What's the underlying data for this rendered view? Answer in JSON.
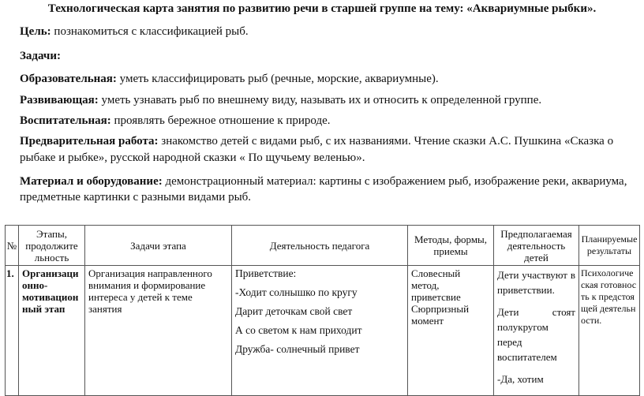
{
  "title": "Технологическая карта занятия по развитию речи в старшей группе на тему: «Аквариумные рыбки».",
  "goal": {
    "label": "Цель:",
    "text": " познакомиться с классификацией рыб."
  },
  "tasks_label": "Задачи:",
  "educational": {
    "label": "Образовательная:",
    "text": " уметь классифицировать рыб (речные, морские, аквариумные)."
  },
  "developing": {
    "label": "Развивающая:",
    "text": " уметь узнавать рыб по внешнему виду, называть их и относить к определенной группе."
  },
  "upbringing": {
    "label": "Воспитательная:",
    "text": " проявлять бережное отношение к природе."
  },
  "preliminary": {
    "label": "Предварительная работа:",
    "line1": "  знакомство детей с видами  рыб, с их названиями. Чтение сказки А.С. Пушкина  «Сказка о",
    "line2": "рыбаке и рыбке», русской народной сказки « По щучьему веленью»."
  },
  "materials": {
    "label": "Материал и оборудование:",
    "line1": " демонстрационный материал: картины с изображением рыб, изображение реки, аквариума,",
    "line2": "предметные картинки с разными видами рыб."
  },
  "table": {
    "headers": [
      "№",
      "Этапы, продолжите льность",
      "Задачи этапа",
      "Деятельность педагога",
      "Методы, формы, приемы",
      "Предполагаемая деятельность детей",
      "Планируемые результаты"
    ],
    "row": {
      "num": "1.",
      "stage": "Организаци онно-мотивацион ный этап",
      "task": "Организация направленного внимания и формирование интереса у детей к теме занятия",
      "teacher": [
        "Приветствие:",
        "-Ходит солнышко по кругу",
        "Дарит деточкам свой свет",
        "А со светом к нам приходит",
        "Дружба- солнечный привет"
      ],
      "methods": "Словесный метод, приветсвие Сюрпризный момент",
      "children": [
        "Дети участвуют в приветствии.",
        "Дети стоят полукругом перед воспитателем",
        "-Да, хотим"
      ],
      "results": "Психологическая готовность к предстоящей деятельности."
    }
  }
}
